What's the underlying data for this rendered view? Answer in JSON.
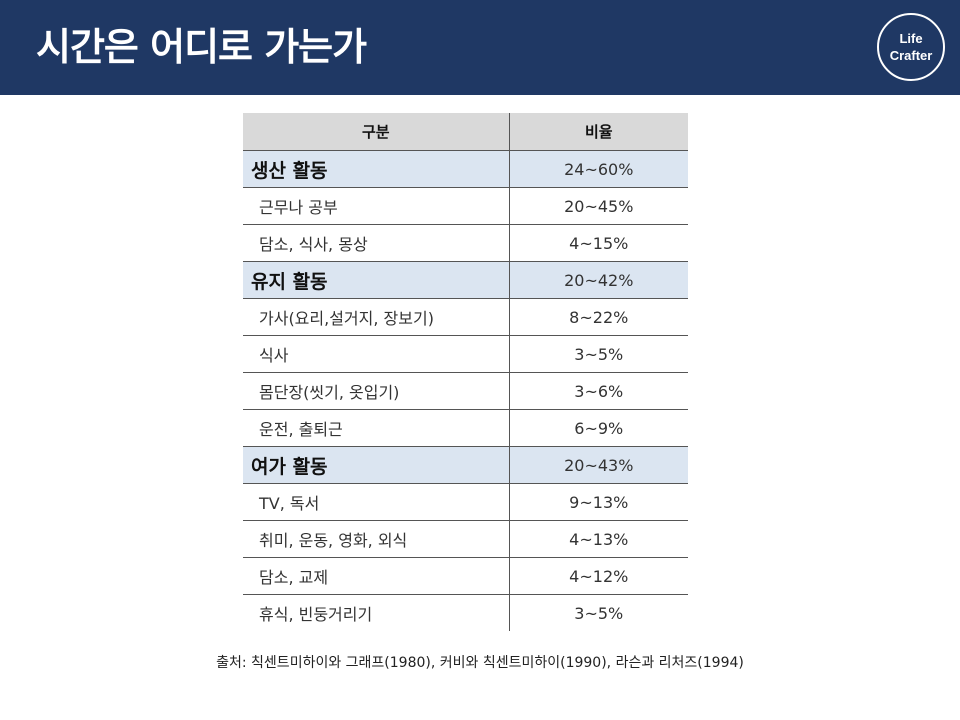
{
  "header": {
    "title": "시간은 어디로 가는가",
    "logo_line1": "Life",
    "logo_line2": "Crafter",
    "background_color": "#1f3864"
  },
  "table": {
    "columns": [
      "구분",
      "비율"
    ],
    "rows": [
      {
        "label": "생산 활동",
        "value": "24~60%",
        "type": "category"
      },
      {
        "label": "근무나 공부",
        "value": "20~45%",
        "type": "item"
      },
      {
        "label": "담소, 식사, 몽상",
        "value": "4~15%",
        "type": "item"
      },
      {
        "label": "유지 활동",
        "value": "20~42%",
        "type": "category"
      },
      {
        "label": "가사(요리,설거지, 장보기)",
        "value": "8~22%",
        "type": "item"
      },
      {
        "label": "식사",
        "value": "3~5%",
        "type": "item"
      },
      {
        "label": "몸단장(씻기, 옷입기)",
        "value": "3~6%",
        "type": "item"
      },
      {
        "label": "운전, 출퇴근",
        "value": "6~9%",
        "type": "item"
      },
      {
        "label": "여가 활동",
        "value": "20~43%",
        "type": "category"
      },
      {
        "label": "TV, 독서",
        "value": "9~13%",
        "type": "item"
      },
      {
        "label": "취미, 운동, 영화, 외식",
        "value": "4~13%",
        "type": "item"
      },
      {
        "label": "담소, 교제",
        "value": "4~12%",
        "type": "item"
      },
      {
        "label": "휴식, 빈둥거리기",
        "value": "3~5%",
        "type": "item"
      }
    ]
  },
  "source": "출처: 칙센트미하이와 그래프(1980), 커비와 칙센트미하이(1990), 라슨과 리처즈(1994)"
}
